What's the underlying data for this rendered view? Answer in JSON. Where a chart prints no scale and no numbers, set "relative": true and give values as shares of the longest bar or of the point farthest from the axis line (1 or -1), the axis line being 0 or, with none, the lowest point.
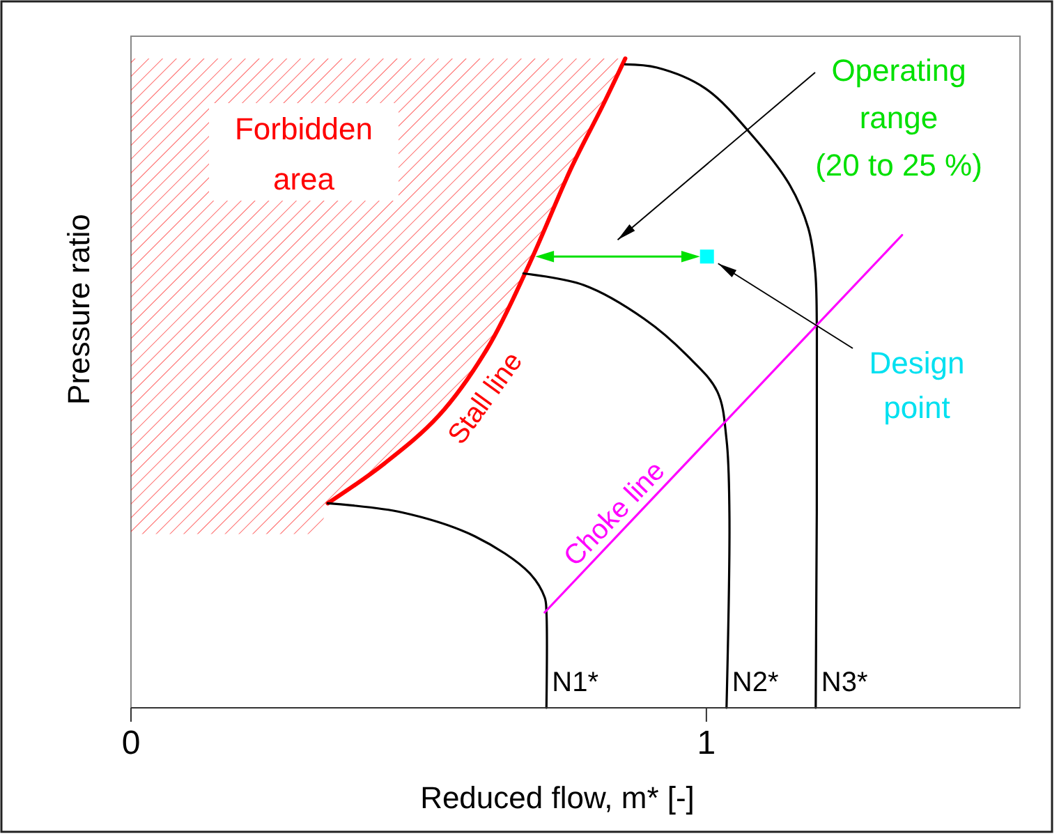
{
  "chart_data": {
    "type": "line",
    "xlabel": "Reduced flow, m* [-]",
    "ylabel": "Pressure ratio",
    "relative": true,
    "xlim": [
      0,
      1.545
    ],
    "xticks": [
      0,
      1
    ],
    "marker": "none",
    "line_style": "solid",
    "series": [
      {
        "name": "Stall line",
        "color": "#ff0000",
        "x": [
          0.342,
          0.44,
          0.535,
          0.619,
          0.692,
          0.766,
          0.819,
          0.859
        ],
        "values": [
          0.315,
          0.376,
          0.45,
          0.553,
          0.683,
          0.833,
          0.926,
          1
        ]
      },
      {
        "name": "N1*",
        "color": "#000000",
        "x": [
          0.342,
          0.471,
          0.598,
          0.692,
          0.719,
          0.722,
          0.722
        ],
        "values": [
          0.315,
          0.301,
          0.264,
          0.208,
          0.17,
          0.147,
          0
        ]
      },
      {
        "name": "N2*",
        "color": "#000000",
        "x": [
          0.682,
          0.787,
          0.892,
          0.966,
          1.019,
          1.035,
          1.04,
          1.035
        ],
        "values": [
          0.669,
          0.651,
          0.599,
          0.543,
          0.487,
          0.413,
          0.301,
          0
        ]
      },
      {
        "name": "N3*",
        "color": "#000000",
        "x": [
          0.859,
          0.914,
          0.998,
          1.082,
          1.145,
          1.177,
          1.189,
          1.192,
          1.19
        ],
        "values": [
          0.991,
          0.986,
          0.954,
          0.879,
          0.805,
          0.739,
          0.674,
          0.581,
          0
        ]
      },
      {
        "name": "Choke line",
        "color": "#ff00ff",
        "x": [
          0.719,
          1.34
        ],
        "values": [
          0.147,
          0.728
        ]
      },
      {
        "type": "scatter",
        "color": "#00ffff",
        "marker": "square",
        "x": [
          1.001
        ],
        "values": [
          0.695
        ]
      }
    ],
    "annotations": [
      "Forbidden area",
      "Operating range (20 to 25 %)",
      "Design point"
    ]
  }
}
